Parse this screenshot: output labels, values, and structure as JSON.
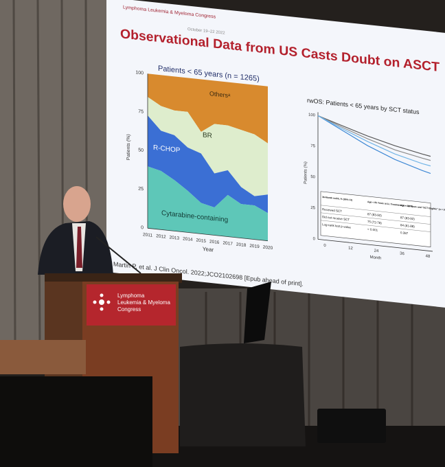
{
  "slide": {
    "logo": "Lymphoma Leukemia & Myeloma Congress",
    "date": "October 19–22 2022",
    "title": "Observational Data from US Casts Doubt on ASCT",
    "left_chart": {
      "title": "Patients < 65 years (n = 1265)",
      "y_label": "Patients (%)",
      "x_label": "Year",
      "y_ticks": [
        "0",
        "25",
        "50",
        "75",
        "100"
      ],
      "x_ticks": [
        "2011",
        "2012",
        "2013",
        "2014",
        "2015",
        "2016",
        "2017",
        "2018",
        "2019",
        "2020"
      ],
      "areas": [
        "Othersᵃ",
        "BR",
        "R-CHOP",
        "Cytarabine-containing"
      ]
    },
    "right_chart": {
      "title": "rwOS: Patients < 65 years by SCT status",
      "y_label": "Patients (%)",
      "x_label": "Month",
      "y_ticks": [
        "0",
        "25",
        "50",
        "75",
        "100"
      ],
      "x_ticks": [
        "0",
        "12",
        "24",
        "36",
        "48"
      ],
      "table": {
        "header": [
          "36-Month rwOS, % (95% CI)",
          "Age < 65 Years at 1L Treatment (n = 1274)",
          "Age < 65 Years and \"SCT Eligible\" (n = 971)"
        ],
        "rows": [
          [
            "Received SCT",
            "87 (83-92)",
            "87 (83-92)"
          ],
          [
            "Did not receive SCT",
            "75 (72-78)",
            "84 (81-88)"
          ],
          [
            "Log-rank test p value",
            "< 0.001",
            "0.387"
          ]
        ]
      }
    },
    "citation": "Martin P, et al. J Clin Oncol. 2022;JCO2102698 [Epub ahead of print]."
  },
  "podium": {
    "logo": [
      "Lymphoma",
      "Leukemia & Myeloma",
      "Congress"
    ]
  }
}
